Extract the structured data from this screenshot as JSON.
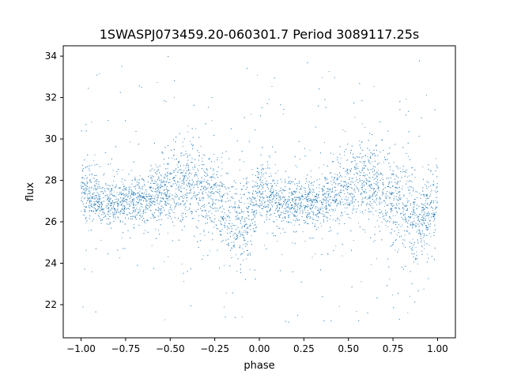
{
  "chart_data": {
    "type": "scatter",
    "title": "1SWASPJ073459.20-060301.7 Period 3089117.25s",
    "xlabel": "phase",
    "ylabel": "flux",
    "xlim": [
      -1.1,
      1.1
    ],
    "ylim": [
      20.4,
      34.5
    ],
    "x_ticks": [
      -1.0,
      -0.75,
      -0.5,
      -0.25,
      0.0,
      0.25,
      0.5,
      0.75,
      1.0
    ],
    "x_tick_labels": [
      "−1.00",
      "−0.75",
      "−0.50",
      "−0.25",
      "0.00",
      "0.25",
      "0.50",
      "0.75",
      "1.00"
    ],
    "y_ticks": [
      22,
      24,
      26,
      28,
      30,
      32,
      34
    ],
    "y_tick_labels": [
      "22",
      "24",
      "26",
      "28",
      "30",
      "32",
      "34"
    ],
    "grid": false,
    "marker_color": "#1f77b4",
    "series": [
      {
        "x": [
          -1.0,
          -0.95,
          -0.9,
          -0.85,
          -0.8,
          -0.75,
          -0.7,
          -0.65,
          -0.6,
          -0.55,
          -0.5,
          -0.45,
          -0.4,
          -0.35,
          -0.3,
          -0.25,
          -0.2,
          -0.15,
          -0.1,
          -0.05,
          0.0,
          0.05,
          0.1,
          0.15,
          0.2,
          0.25,
          0.3,
          0.35,
          0.4,
          0.45,
          0.5,
          0.55,
          0.6,
          0.65,
          0.7,
          0.75,
          0.8,
          0.85,
          0.9,
          0.95,
          1.0
        ],
        "median": [
          27.3,
          27.3,
          27.0,
          27.0,
          26.9,
          27.0,
          27.0,
          27.1,
          27.3,
          27.5,
          27.6,
          27.8,
          27.9,
          27.8,
          27.5,
          27.0,
          26.6,
          26.2,
          25.9,
          26.5,
          27.3,
          27.3,
          27.0,
          27.0,
          26.9,
          27.0,
          27.0,
          27.1,
          27.3,
          27.5,
          27.6,
          27.8,
          27.9,
          27.8,
          27.5,
          27.0,
          26.6,
          26.2,
          25.9,
          26.5,
          27.3
        ],
        "spread": [
          0.9,
          0.9,
          0.7,
          0.7,
          0.7,
          0.7,
          0.7,
          0.8,
          0.9,
          1.0,
          1.1,
          1.2,
          1.2,
          1.3,
          1.3,
          1.3,
          1.4,
          1.5,
          1.3,
          1.1,
          0.9,
          0.9,
          0.7,
          0.7,
          0.7,
          0.7,
          0.7,
          0.8,
          0.9,
          1.0,
          1.1,
          1.2,
          1.2,
          1.3,
          1.3,
          1.3,
          1.4,
          1.5,
          1.3,
          1.1,
          0.9
        ],
        "outlier_range": [
          21.0,
          33.8
        ]
      }
    ]
  }
}
